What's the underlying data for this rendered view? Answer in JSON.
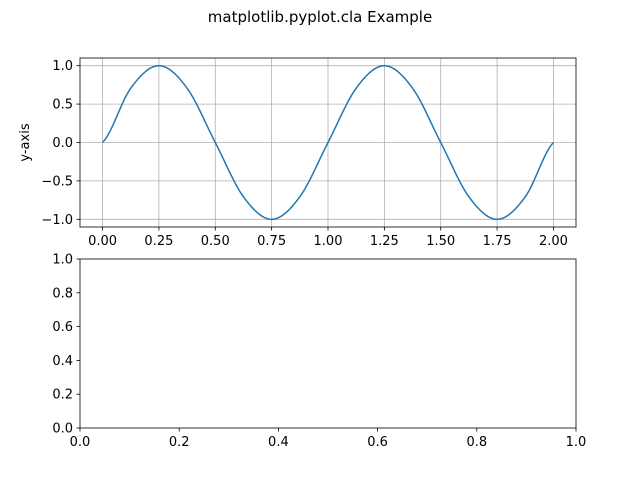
{
  "figure": {
    "title": "matplotlib.pyplot.cla Example"
  },
  "chart_data": [
    {
      "type": "line",
      "title": "",
      "xlabel": "",
      "ylabel": "y-axis",
      "xlim": [
        -0.1,
        2.1
      ],
      "ylim": [
        -1.1,
        1.1
      ],
      "grid": true,
      "x_ticks": [
        0.0,
        0.25,
        0.5,
        0.75,
        1.0,
        1.25,
        1.5,
        1.75,
        2.0
      ],
      "x_tick_labels": [
        "0.00",
        "0.25",
        "0.50",
        "0.75",
        "1.00",
        "1.25",
        "1.50",
        "1.75",
        "2.00"
      ],
      "y_ticks": [
        1.0,
        0.5,
        0.0,
        -0.5,
        -1.0
      ],
      "y_tick_labels": [
        "1.0",
        "0.5",
        "0.0",
        "−0.5",
        "−1.0"
      ],
      "series": [
        {
          "color": "#1f77b4",
          "x": [
            0,
            0.125,
            0.25,
            0.375,
            0.5,
            0.625,
            0.75,
            0.875,
            1.0,
            1.125,
            1.25,
            1.375,
            1.5,
            1.625,
            1.75,
            1.875,
            2.0
          ],
          "y": [
            0,
            0.707,
            1.0,
            0.707,
            0,
            -0.707,
            -1.0,
            -0.707,
            0,
            0.707,
            1.0,
            0.707,
            0,
            -0.707,
            -1.0,
            -0.707,
            0
          ]
        }
      ]
    },
    {
      "type": "line",
      "title": "",
      "xlabel": "",
      "ylabel": "",
      "xlim": [
        0,
        1
      ],
      "ylim": [
        0,
        1
      ],
      "grid": false,
      "x_ticks": [
        0.0,
        0.2,
        0.4,
        0.6,
        0.8,
        1.0
      ],
      "x_tick_labels": [
        "0.0",
        "0.2",
        "0.4",
        "0.6",
        "0.8",
        "1.0"
      ],
      "y_ticks": [
        0.0,
        0.2,
        0.4,
        0.6,
        0.8,
        1.0
      ],
      "y_tick_labels": [
        "0.0",
        "0.2",
        "0.4",
        "0.6",
        "0.8",
        "1.0"
      ],
      "series": []
    }
  ]
}
